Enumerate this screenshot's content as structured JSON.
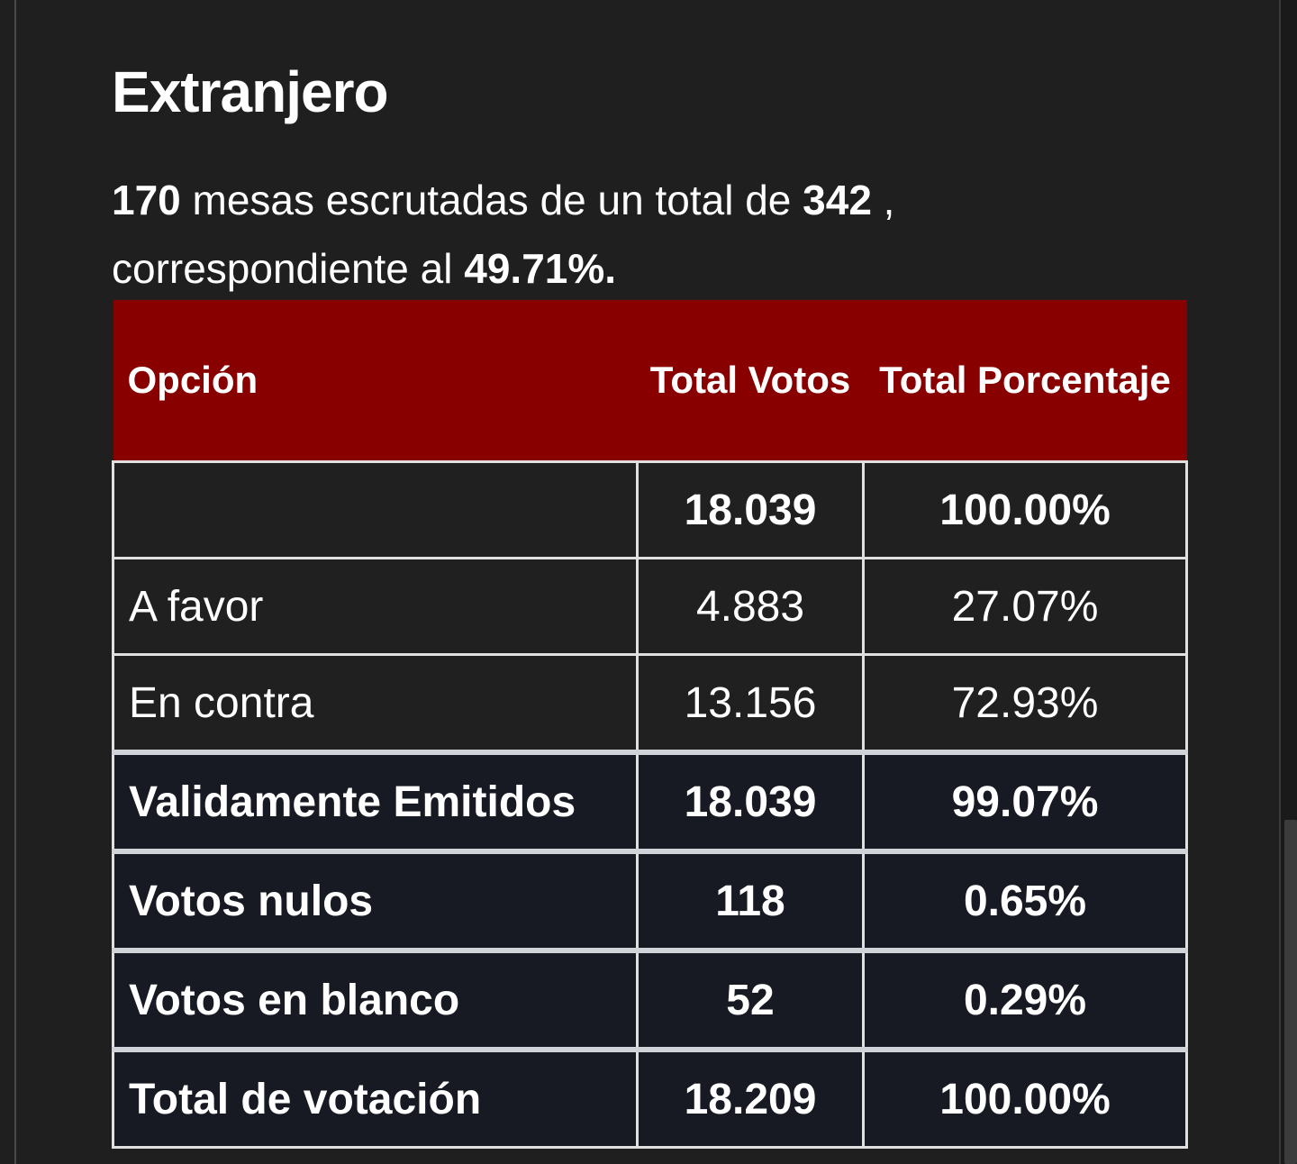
{
  "section": {
    "title": "Extranjero",
    "summary": {
      "mesas_escrutadas": "170",
      "text_1": " mesas escrutadas de un total de ",
      "total_mesas": "342",
      "text_2": " , correspondiente al ",
      "porcentaje": "49.71%."
    }
  },
  "table": {
    "headers": {
      "opcion": "Opción",
      "total_votos": "Total Votos",
      "total_porcentaje": "Total Porcentaje"
    },
    "rows": [
      {
        "opcion": "",
        "votos": "18.039",
        "porcentaje": "100.00%"
      },
      {
        "opcion": "A favor",
        "votos": "4.883",
        "porcentaje": "27.07%"
      },
      {
        "opcion": "En contra",
        "votos": "13.156",
        "porcentaje": "72.93%"
      }
    ],
    "stats": [
      {
        "opcion": "Validamente Emitidos",
        "votos": "18.039",
        "porcentaje": "99.07%"
      },
      {
        "opcion": "Votos nulos",
        "votos": "118",
        "porcentaje": "0.65%"
      },
      {
        "opcion": "Votos en blanco",
        "votos": "52",
        "porcentaje": "0.29%"
      },
      {
        "opcion": "Total de votación",
        "votos": "18.209",
        "porcentaje": "100.00%"
      }
    ]
  },
  "colors": {
    "background": "#1f1f1f",
    "header": "#880000",
    "stats_background": "#171a22"
  }
}
